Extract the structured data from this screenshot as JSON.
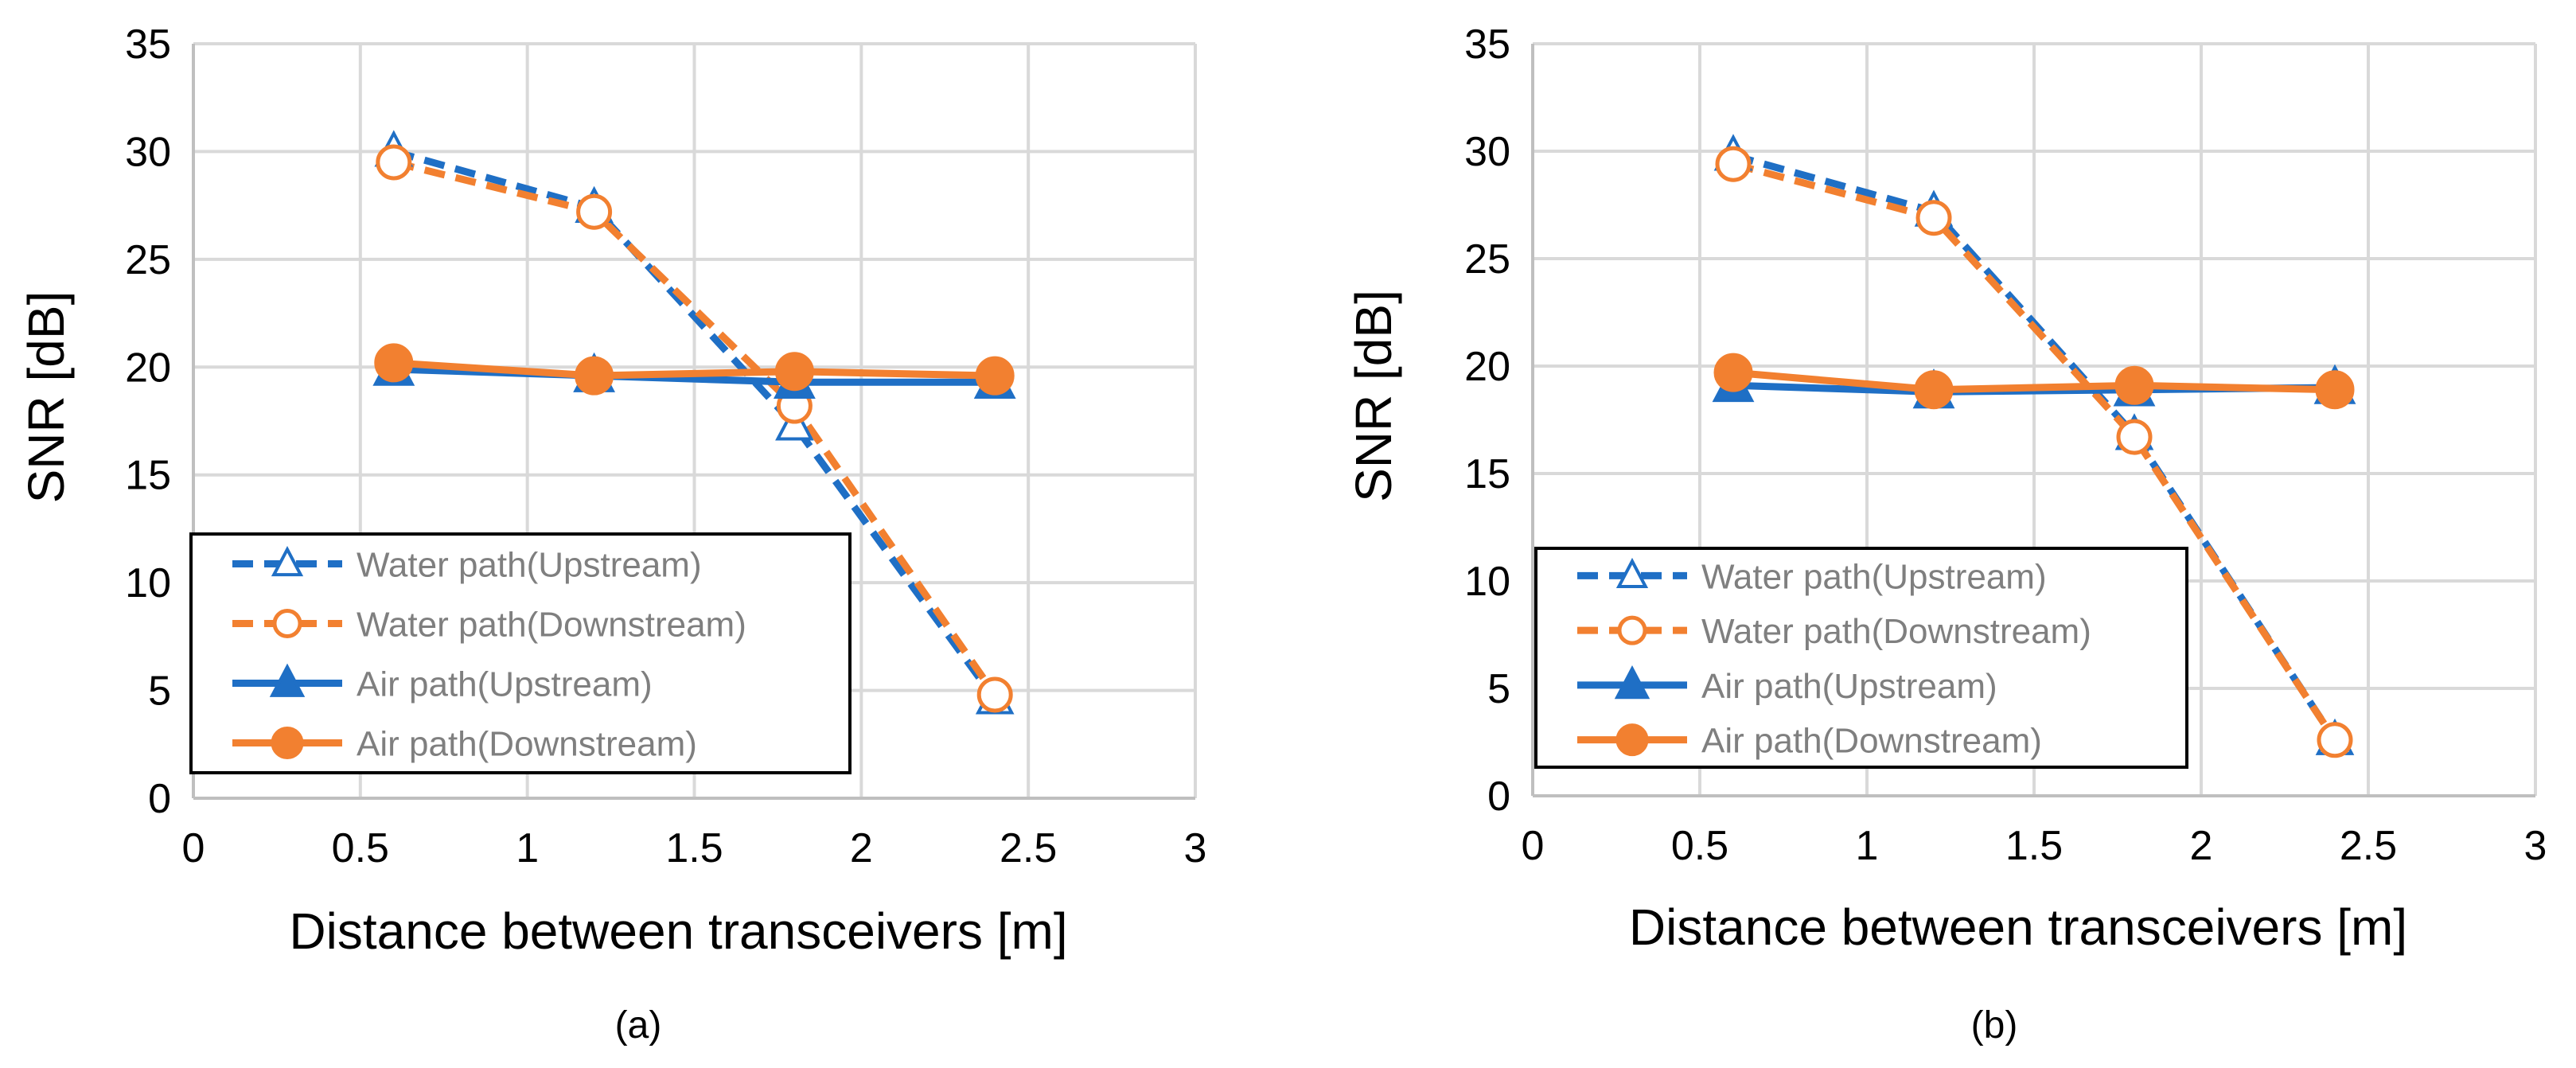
{
  "colors": {
    "blue": "#1F6FC5",
    "orange": "#F28030",
    "grid": "#D9D9D9",
    "axis": "#BFBFBF",
    "text": "#000000",
    "legend_text": "#7F7F7F",
    "legend_border": "#000000"
  },
  "chart_data": [
    {
      "type": "line",
      "panel_label": "(a)",
      "title": "",
      "xlabel": "Distance between transceivers [m]",
      "ylabel": "SNR [dB]",
      "xlim": [
        0,
        3
      ],
      "ylim": [
        0,
        35
      ],
      "x_ticks": [
        0,
        0.5,
        1,
        1.5,
        2,
        2.5,
        3
      ],
      "x_tick_labels": [
        "0",
        "0.5",
        "1",
        "1.5",
        "2",
        "2.5",
        "3"
      ],
      "y_ticks": [
        0,
        5,
        10,
        15,
        20,
        25,
        30,
        35
      ],
      "y_tick_labels": [
        "0",
        "5",
        "10",
        "15",
        "20",
        "25",
        "30",
        "35"
      ],
      "grid": true,
      "legend_position": "bottom-left",
      "x": [
        0.6,
        1.2,
        1.8,
        2.4
      ],
      "series": [
        {
          "name": "Water path(Upstream)",
          "color": "blue",
          "line": "dashed",
          "marker": "triangle",
          "filled": false,
          "values": [
            30.0,
            27.4,
            17.3,
            4.6
          ]
        },
        {
          "name": "Water path(Downstream)",
          "color": "orange",
          "line": "dashed",
          "marker": "circle",
          "filled": false,
          "values": [
            29.5,
            27.2,
            18.2,
            4.8
          ]
        },
        {
          "name": "Air path(Upstream)",
          "color": "blue",
          "line": "solid",
          "marker": "triangle",
          "filled": true,
          "values": [
            19.9,
            19.6,
            19.3,
            19.3
          ]
        },
        {
          "name": "Air path(Downstream)",
          "color": "orange",
          "line": "solid",
          "marker": "circle",
          "filled": true,
          "values": [
            20.2,
            19.6,
            19.8,
            19.6
          ]
        }
      ]
    },
    {
      "type": "line",
      "panel_label": "(b)",
      "title": "",
      "xlabel": "Distance between transceivers  [m]",
      "ylabel": "SNR [dB]",
      "xlim": [
        0,
        3
      ],
      "ylim": [
        0,
        35
      ],
      "x_ticks": [
        0,
        0.5,
        1,
        1.5,
        2,
        2.5,
        3
      ],
      "x_tick_labels": [
        "0",
        "0.5",
        "1",
        "1.5",
        "2",
        "2.5",
        "3"
      ],
      "y_ticks": [
        0,
        5,
        10,
        15,
        20,
        25,
        30,
        35
      ],
      "y_tick_labels": [
        "0",
        "5",
        "10",
        "15",
        "20",
        "25",
        "30",
        "35"
      ],
      "grid": true,
      "legend_position": "bottom-left",
      "x": [
        0.6,
        1.2,
        1.8,
        2.4
      ],
      "series": [
        {
          "name": "Water path(Upstream)",
          "color": "blue",
          "line": "dashed",
          "marker": "triangle",
          "filled": false,
          "values": [
            29.8,
            27.2,
            16.8,
            2.6
          ]
        },
        {
          "name": "Water path(Downstream)",
          "color": "orange",
          "line": "dashed",
          "marker": "circle",
          "filled": false,
          "values": [
            29.4,
            26.9,
            16.7,
            2.6
          ]
        },
        {
          "name": "Air path(Upstream)",
          "color": "blue",
          "line": "solid",
          "marker": "triangle",
          "filled": true,
          "values": [
            19.1,
            18.8,
            18.9,
            19.0
          ]
        },
        {
          "name": "Air path(Downstream)",
          "color": "orange",
          "line": "solid",
          "marker": "circle",
          "filled": true,
          "values": [
            19.7,
            18.9,
            19.1,
            18.9
          ]
        }
      ]
    }
  ]
}
